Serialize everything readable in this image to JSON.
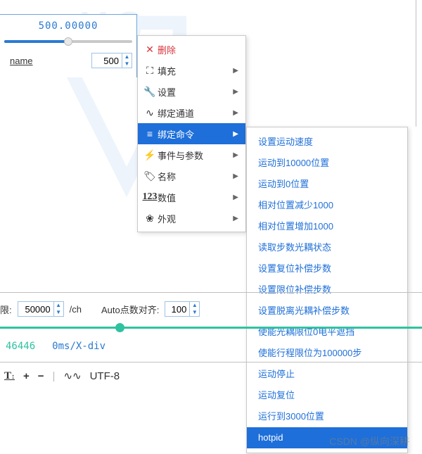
{
  "top_panel": {
    "value_display": "500.00000",
    "slider_percent": 50,
    "name_label": "name",
    "spin_value": "500"
  },
  "menu1": {
    "items": [
      {
        "icon": "✕",
        "label": "删除",
        "has_arrow": false,
        "is_delete": true
      },
      {
        "icon": "⛶",
        "label": "填充",
        "has_arrow": true
      },
      {
        "icon": "🔧",
        "label": "设置",
        "has_arrow": true
      },
      {
        "icon": "∿",
        "label": "绑定通道",
        "has_arrow": true
      },
      {
        "icon": "≡",
        "label": "绑定命令",
        "has_arrow": true,
        "selected": true
      },
      {
        "icon": "⚡",
        "label": "事件与参数",
        "has_arrow": true
      },
      {
        "icon": "🏷",
        "label": "名称",
        "has_arrow": true
      },
      {
        "icon": "123",
        "label": "数值",
        "has_arrow": true,
        "icon_is_text": true
      },
      {
        "icon": "❀",
        "label": "外观",
        "has_arrow": true
      }
    ]
  },
  "menu2": {
    "items": [
      "设置运动速度",
      "运动到10000位置",
      "运动到0位置",
      "相对位置减少1000",
      "相对位置增加1000",
      "读取步数光耦状态",
      "设置复位补偿步数",
      "设置限位补偿步数",
      "设置脱离光耦补偿步数",
      "使能光耦限位0电平遮挡",
      "使能行程限位为100000步",
      "运动停止",
      "运动复位",
      "运行到3000位置",
      "hotpid"
    ],
    "selected_index": 14
  },
  "bottom": {
    "limit_label": "限:",
    "limit_value": "50000",
    "limit_unit": "/ch",
    "auto_label": "Auto点数对齐:",
    "auto_value": "100",
    "status_value1": "46446",
    "status_value2": "0ms/X-div",
    "encoding": "UTF-8"
  },
  "watermark": "CSDN @纵向深耕",
  "colors": {
    "accent_blue": "#2b7ad1",
    "select_blue": "#1e6fd9",
    "teal": "#2fc2a0",
    "delete_red": "#d9363e",
    "border_gray": "#c0c0c0"
  }
}
